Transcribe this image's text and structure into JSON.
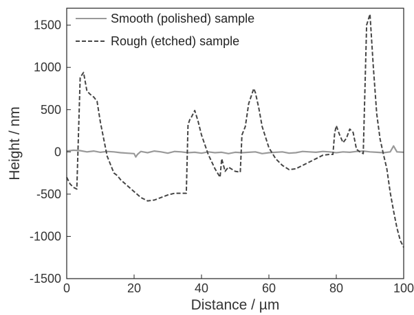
{
  "chart_data": {
    "type": "line",
    "xlabel": "Distance / µm",
    "ylabel": "Height / nm",
    "xlim": [
      0,
      100
    ],
    "ylim": [
      -1500,
      1700
    ],
    "xticks": [
      0,
      20,
      40,
      60,
      80,
      100
    ],
    "yticks": [
      -1500,
      -1000,
      -500,
      0,
      500,
      1000,
      1500
    ],
    "grid": false,
    "legend_position": "top-left",
    "series": [
      {
        "name": "Smooth (polished) sample",
        "style": "solid",
        "color": "#999999",
        "x": [
          0,
          2,
          4,
          6,
          8,
          10,
          12,
          14,
          16,
          18,
          20,
          20.5,
          21,
          22,
          24,
          26,
          28,
          30,
          32,
          34,
          36,
          38,
          40,
          42,
          44,
          46,
          48,
          50,
          52,
          54,
          56,
          58,
          60,
          62,
          64,
          66,
          68,
          70,
          72,
          74,
          76,
          78,
          80,
          82,
          84,
          86,
          88,
          90,
          92,
          94,
          96,
          97,
          98,
          100
        ],
        "y": [
          10,
          20,
          15,
          0,
          10,
          -5,
          5,
          0,
          -10,
          -15,
          -20,
          -60,
          -30,
          5,
          -10,
          10,
          0,
          -15,
          5,
          0,
          -10,
          -5,
          -15,
          0,
          -10,
          -5,
          -20,
          -5,
          -10,
          -5,
          0,
          -20,
          -10,
          -5,
          0,
          -15,
          -10,
          5,
          0,
          -5,
          5,
          0,
          -10,
          0,
          -5,
          5,
          10,
          0,
          -5,
          -10,
          0,
          70,
          0,
          -5
        ]
      },
      {
        "name": "Rough (etched) sample",
        "style": "dashed",
        "color": "#444444",
        "x": [
          0,
          1,
          2,
          3,
          4,
          5,
          6,
          7,
          8,
          9,
          10,
          12,
          14,
          15,
          16,
          18,
          20,
          22,
          24,
          26,
          28,
          30,
          32,
          34,
          35.5,
          36,
          36.5,
          37,
          38,
          39,
          40,
          42,
          44,
          45.5,
          46,
          47,
          48,
          50,
          51.5,
          52,
          53,
          54,
          55.5,
          56,
          57,
          58,
          60,
          62,
          64,
          66,
          68,
          70,
          72,
          74,
          76,
          78,
          79,
          79.5,
          80,
          81,
          82,
          83,
          84,
          85,
          86,
          87,
          88,
          88.5,
          89,
          90,
          91,
          92,
          93,
          94,
          95,
          96,
          97,
          98,
          99,
          100
        ],
        "y": [
          -300,
          -380,
          -420,
          -440,
          880,
          940,
          720,
          680,
          650,
          600,
          350,
          -50,
          -250,
          -280,
          -330,
          -400,
          -470,
          -540,
          -580,
          -570,
          -540,
          -510,
          -490,
          -490,
          -490,
          320,
          380,
          410,
          490,
          360,
          200,
          -30,
          -200,
          -300,
          -80,
          -230,
          -180,
          -230,
          -240,
          200,
          300,
          570,
          750,
          700,
          520,
          300,
          50,
          -80,
          -160,
          -210,
          -200,
          -160,
          -120,
          -80,
          -40,
          -30,
          -30,
          220,
          310,
          200,
          110,
          160,
          270,
          230,
          30,
          0,
          -20,
          720,
          1500,
          1630,
          1000,
          450,
          150,
          -30,
          -200,
          -480,
          -700,
          -900,
          -1050,
          -1130
        ]
      }
    ]
  }
}
